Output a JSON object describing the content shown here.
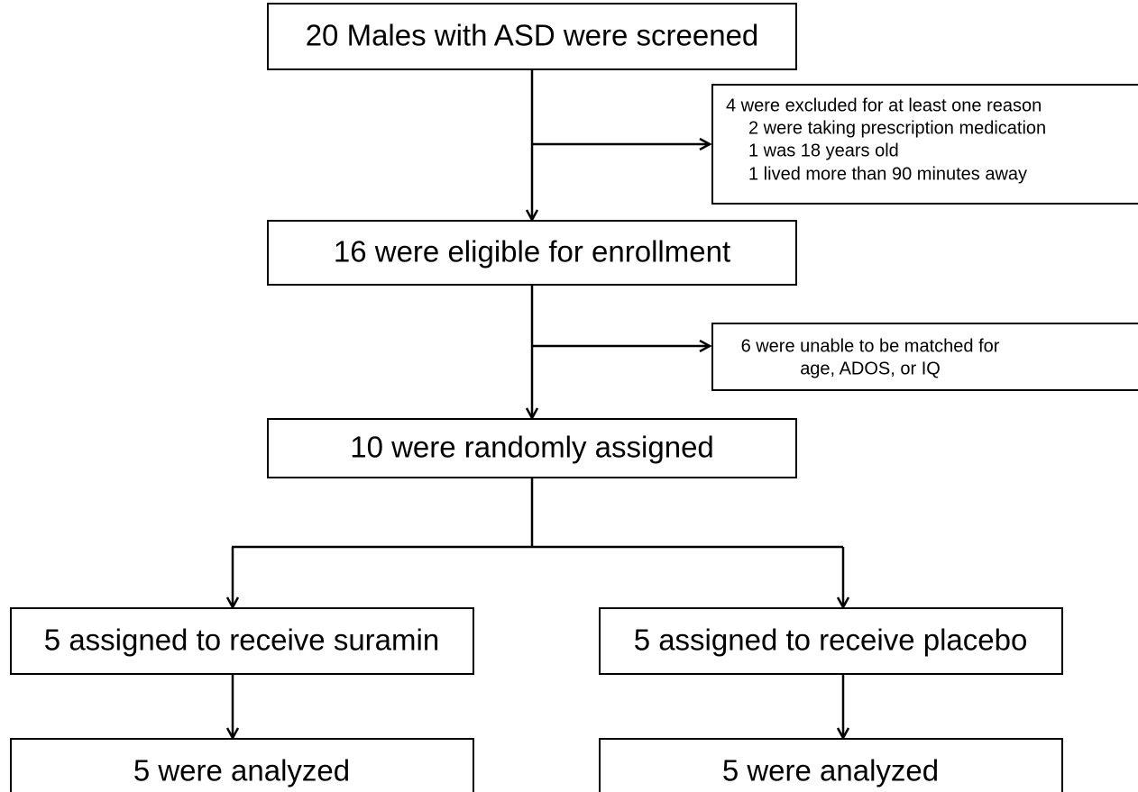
{
  "nodes": [
    {
      "label": "20 Males with ASD were screened"
    },
    {
      "lines": [
        "4 were excluded for at least one reason",
        "2 were taking prescription medication",
        "1 was 18 years old",
        "1 lived more than 90 minutes away"
      ]
    },
    {
      "label": "16 were eligible for enrollment"
    },
    {
      "lines": [
        "6 were unable to be matched for",
        "age, ADOS, or IQ"
      ]
    },
    {
      "label": "10 were randomly assigned"
    },
    {
      "label": "5 assigned to receive suramin"
    },
    {
      "label": "5 assigned to receive placebo"
    },
    {
      "label": "5 were analyzed"
    },
    {
      "label": "5 were analyzed"
    }
  ]
}
